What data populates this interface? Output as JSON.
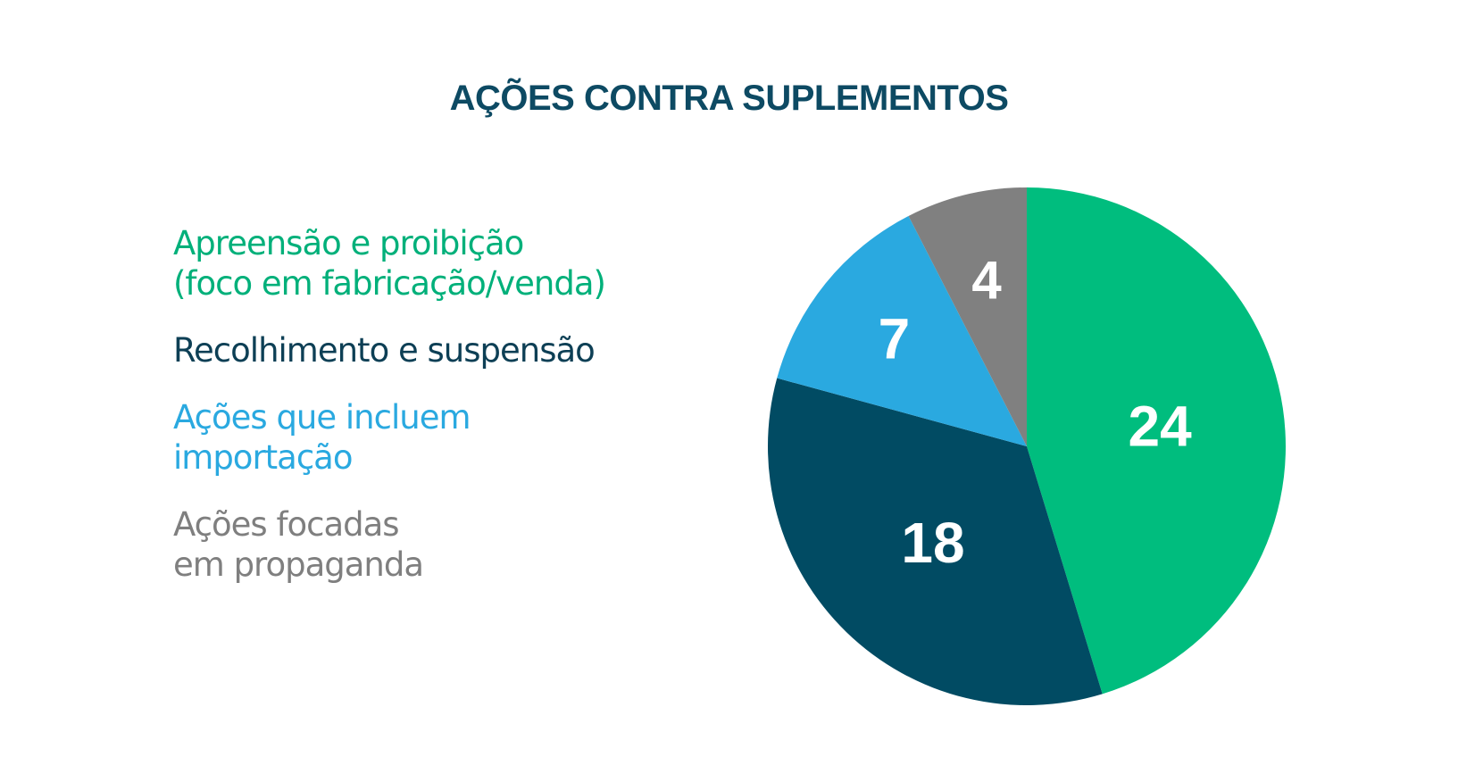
{
  "chart_data": {
    "type": "pie",
    "title": "AÇÕES CONTRA SUPLEMENTOS",
    "slices": [
      {
        "name_lines": [
          "Apreensão e proibição",
          "(foco em fabricação/venda)"
        ],
        "value": 24,
        "color": "#00bd7e",
        "label_color": "#00b07a"
      },
      {
        "name_lines": [
          "Recolhimento e suspensão"
        ],
        "value": 18,
        "color": "#014b63",
        "label_color": "#0d3f55"
      },
      {
        "name_lines": [
          "Ações que incluem",
          "importação"
        ],
        "value": 7,
        "color": "#2aa9e0",
        "label_color": "#2aa9e0"
      },
      {
        "name_lines": [
          "Ações focadas",
          "em propaganda"
        ],
        "value": 4,
        "color": "#808080",
        "label_color": "#7f7f7f"
      }
    ],
    "start_angle_deg": 0,
    "direction": "clockwise",
    "legend_position": "left",
    "show_value_labels": true
  }
}
